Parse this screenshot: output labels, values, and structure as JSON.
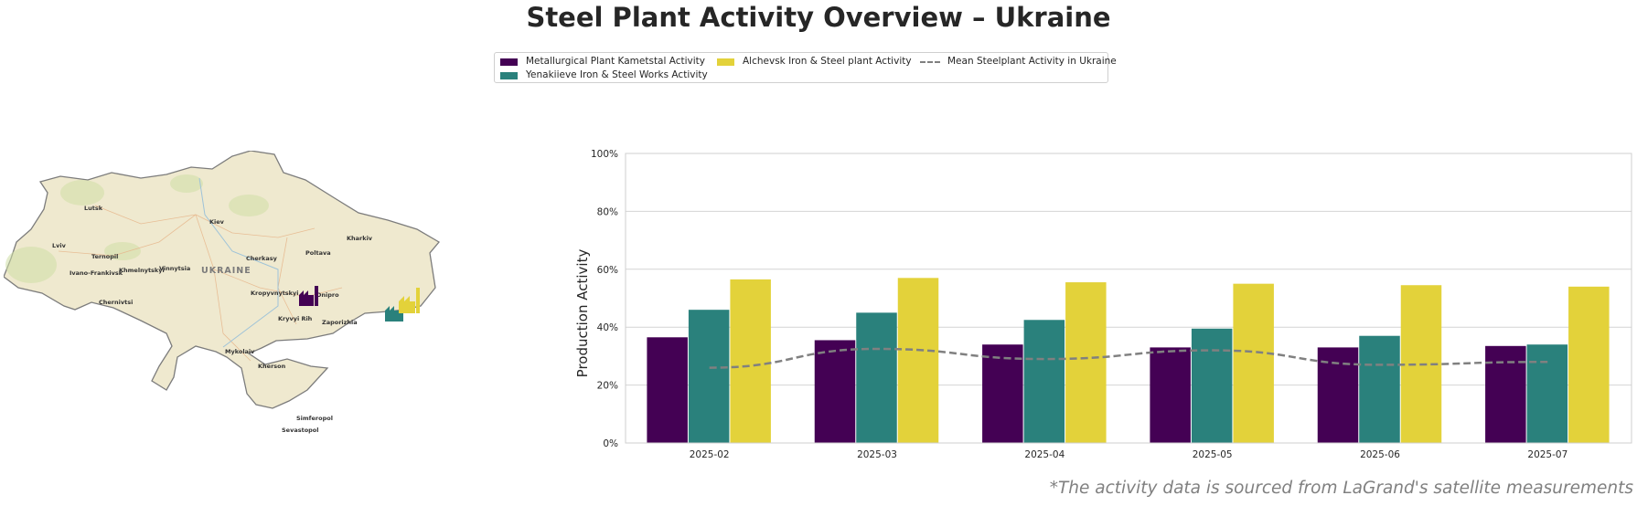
{
  "title": "Steel Plant Activity Overview – Ukraine",
  "footer": "*The activity data is sourced from LaGrand's satellite measurements",
  "colors": {
    "metallurgical": "#440154",
    "yenakiieve": "#2a817c",
    "alchevsk": "#e3d23a",
    "mean": "#808080"
  },
  "legend": {
    "metallurgical": "Metallurgical Plant Kametstal Activity",
    "yenakiieve": "Yenakiieve Iron & Steel Works Activity",
    "alchevsk": "Alchevsk Iron & Steel plant Activity",
    "mean": "Mean Steelplant Activity in Ukraine"
  },
  "map": {
    "country_label": "UKRAINE",
    "cities": [
      "Lutsk",
      "Kiev",
      "Kharkiv",
      "Lviv",
      "Ternopil",
      "Khmelnytskyi",
      "Vinnytsia",
      "Cherkasy",
      "Poltava",
      "Ivano-Frankivsk",
      "Chernivtsi",
      "Kropyvnytskyi",
      "Dnipro",
      "Kryvyi Rih",
      "Zaporizhia",
      "Mykolaiv",
      "Kherson",
      "Simferopol",
      "Sevastopol"
    ],
    "plant_icons": [
      "metallurgical-plant-icon",
      "yenakiieve-plant-icon",
      "alchevsk-plant-icon"
    ]
  },
  "chart_data": {
    "type": "bar",
    "ylabel": "Production Activity",
    "ylim": [
      0,
      100
    ],
    "yticks": [
      "0%",
      "20%",
      "40%",
      "60%",
      "80%",
      "100%"
    ],
    "grid": true,
    "legend_placement": "top-center",
    "categories": [
      "2025-02",
      "2025-03",
      "2025-04",
      "2025-05",
      "2025-06",
      "2025-07"
    ],
    "series": [
      {
        "name": "Metallurgical Plant Kametstal Activity",
        "values": [
          36.5,
          35.5,
          34,
          33,
          33,
          33.5
        ]
      },
      {
        "name": "Yenakiieve Iron & Steel Works Activity",
        "values": [
          46,
          45,
          42.5,
          39.5,
          37,
          34
        ]
      },
      {
        "name": "Alchevsk Iron & Steel plant Activity",
        "values": [
          56.5,
          57,
          55.5,
          55,
          54.5,
          54
        ]
      }
    ],
    "mean_line": {
      "name": "Mean Steelplant Activity in Ukraine",
      "values": [
        26,
        32.5,
        29,
        32,
        27,
        28
      ]
    }
  }
}
